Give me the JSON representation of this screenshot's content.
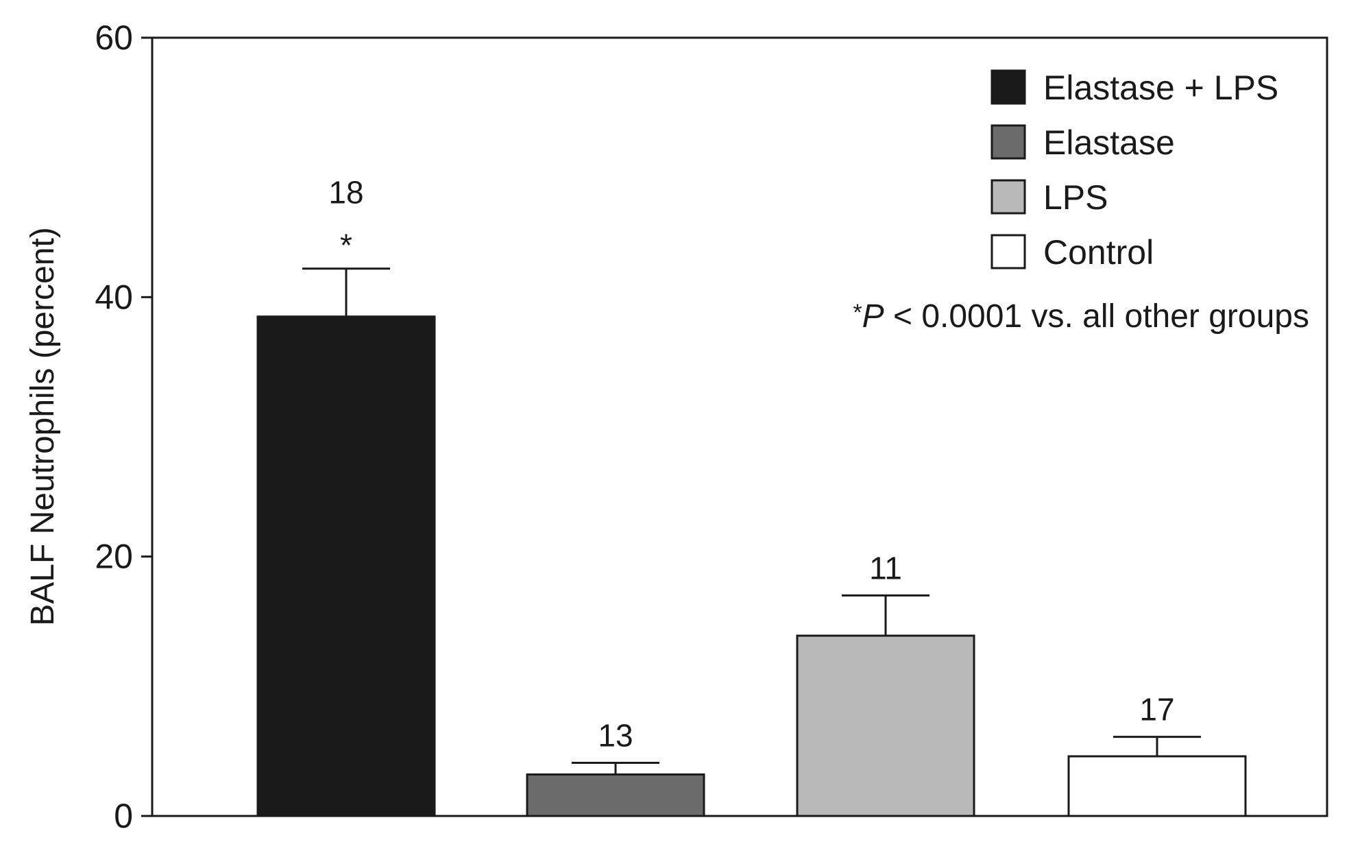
{
  "chart_data": {
    "type": "bar",
    "ylabel": "BALF Neutrophils (percent)",
    "ylim": [
      0,
      60
    ],
    "yticks": [
      0,
      20,
      40,
      60
    ],
    "grid": false,
    "legend_position": "top-right",
    "series": [
      {
        "name": "Elastase + LPS",
        "value": 38.5,
        "error": 3.7,
        "n_label": "18",
        "significance": "*",
        "color": "#1a1a1a"
      },
      {
        "name": "Elastase",
        "value": 3.2,
        "error": 0.9,
        "n_label": "13",
        "significance": "",
        "color": "#6b6b6b"
      },
      {
        "name": "LPS",
        "value": 13.9,
        "error": 3.1,
        "n_label": "11",
        "significance": "",
        "color": "#b9b9b9"
      },
      {
        "name": "Control",
        "value": 4.6,
        "error": 1.5,
        "n_label": "17",
        "significance": "",
        "color": "#ffffff"
      }
    ],
    "annotation": {
      "prefix": "*",
      "italic": "P",
      "rest": " < 0.0001 vs. all other groups"
    }
  }
}
